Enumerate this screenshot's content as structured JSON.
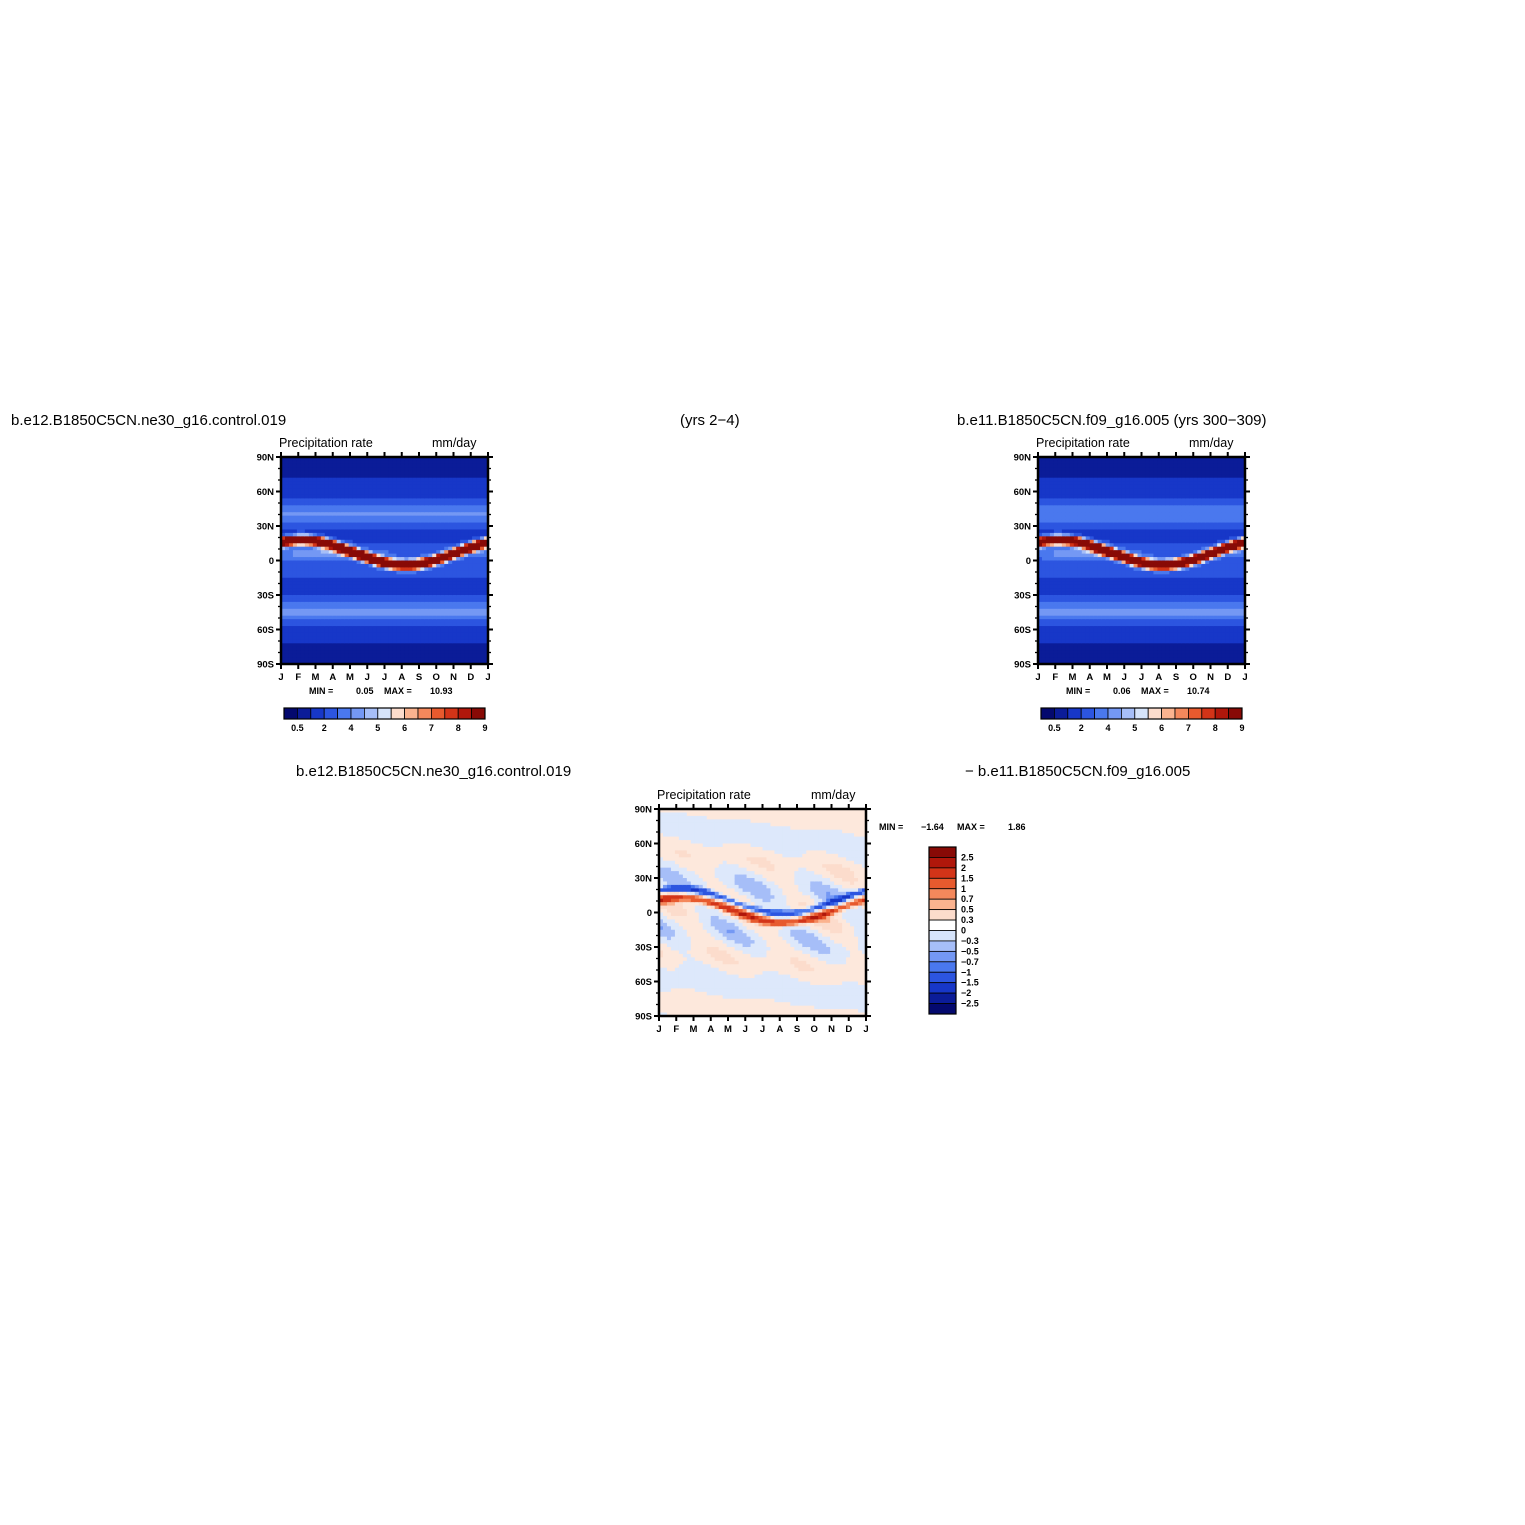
{
  "titles": {
    "top_left": "b.e12.B1850C5CN.ne30_g16.control.019",
    "top_center": "(yrs 2−4)",
    "top_right": "b.e11.B1850C5CN.f09_g16.005 (yrs 300−309)",
    "bottom_left": "b.e12.B1850C5CN.ne30_g16.control.019",
    "bottom_right": "− b.e11.B1850C5CN.f09_g16.005"
  },
  "chart_data": [
    {
      "id": "panel1",
      "type": "heatmap",
      "title": "Precipitation  rate",
      "units": "mm/day",
      "x_ticks": [
        "J",
        "F",
        "M",
        "A",
        "M",
        "J",
        "J",
        "A",
        "S",
        "O",
        "N",
        "D",
        "J"
      ],
      "y_ticks": [
        "90N",
        "60N",
        "30N",
        "0",
        "30S",
        "60S",
        "90S"
      ],
      "min_label": "MIN =",
      "min_value": "0.05",
      "max_label": "MAX =",
      "max_value": "10.93",
      "colorbar_labels": [
        "0.5",
        "2",
        "4",
        "5",
        "6",
        "7",
        "8",
        "9"
      ],
      "colors": [
        "#04096e",
        "#0b1c98",
        "#1737c8",
        "#2c55e0",
        "#4a78ee",
        "#7498f4",
        "#a6bef8",
        "#d6e4fb",
        "#fcdccc",
        "#fbb38f",
        "#f4885c",
        "#e75a2e",
        "#d33418",
        "#b0170b",
        "#880a06"
      ]
    },
    {
      "id": "panel2",
      "type": "heatmap",
      "title": "Precipitation  rate",
      "units": "mm/day",
      "x_ticks": [
        "J",
        "F",
        "M",
        "A",
        "M",
        "J",
        "J",
        "A",
        "S",
        "O",
        "N",
        "D",
        "J"
      ],
      "y_ticks": [
        "90N",
        "60N",
        "30N",
        "0",
        "30S",
        "60S",
        "90S"
      ],
      "min_label": "MIN =",
      "min_value": "0.06",
      "max_label": "MAX =",
      "max_value": "10.74",
      "colorbar_labels": [
        "0.5",
        "2",
        "4",
        "5",
        "6",
        "7",
        "8",
        "9"
      ],
      "colors": [
        "#04096e",
        "#0b1c98",
        "#1737c8",
        "#2c55e0",
        "#4a78ee",
        "#7498f4",
        "#a6bef8",
        "#d6e4fb",
        "#fcdccc",
        "#fbb38f",
        "#f4885c",
        "#e75a2e",
        "#d33418",
        "#b0170b",
        "#880a06"
      ]
    },
    {
      "id": "diff",
      "type": "heatmap",
      "title": "Precipitation  rate",
      "units": "mm/day",
      "x_ticks": [
        "J",
        "F",
        "M",
        "A",
        "M",
        "J",
        "J",
        "A",
        "S",
        "O",
        "N",
        "D",
        "J"
      ],
      "y_ticks": [
        "90N",
        "60N",
        "30N",
        "0",
        "30S",
        "60S",
        "90S"
      ],
      "min_label": "MIN =",
      "min_value": "−1.64",
      "max_label": "MAX =",
      "max_value": "1.86",
      "colorbar_labels": [
        "2.5",
        "2",
        "1.5",
        "1",
        "0.7",
        "0.5",
        "0.3",
        "0",
        "−0.3",
        "−0.5",
        "−0.7",
        "−1",
        "−1.5",
        "−2",
        "−2.5"
      ],
      "colors": [
        "#880a06",
        "#b0170b",
        "#d33418",
        "#e75a2e",
        "#f4885c",
        "#fbb38f",
        "#fcdccc",
        "#ffffff",
        "#d6e4fb",
        "#a6bef8",
        "#7498f4",
        "#4a78ee",
        "#2c55e0",
        "#1737c8",
        "#0b1c98",
        "#04096e"
      ]
    }
  ]
}
